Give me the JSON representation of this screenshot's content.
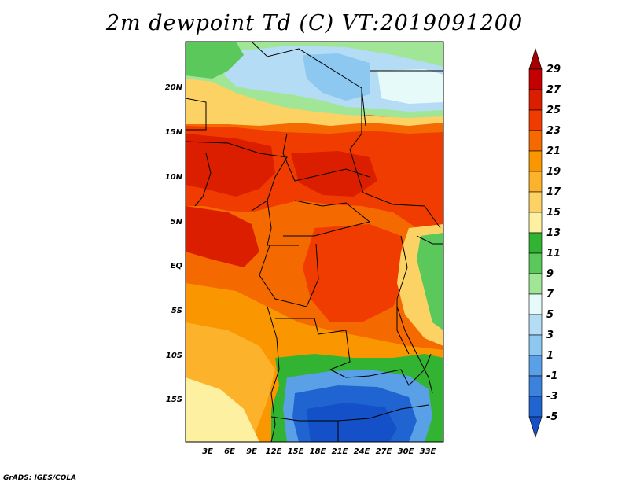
{
  "title": "2m dewpoint Td (C) VT:2019091200",
  "credit": "GrADS: IGES/COLA",
  "lat_labels": [
    "20N",
    "15N",
    "10N",
    "5N",
    "EQ",
    "5S",
    "10S",
    "15S"
  ],
  "lon_labels": [
    "3E",
    "6E",
    "9E",
    "12E",
    "15E",
    "18E",
    "21E",
    "24E",
    "27E",
    "30E",
    "33E"
  ],
  "colorbar": {
    "labels": [
      "29",
      "27",
      "25",
      "23",
      "21",
      "19",
      "17",
      "15",
      "13",
      "11",
      "9",
      "7",
      "5",
      "3",
      "1",
      "-1",
      "-3",
      "-5"
    ],
    "colors": [
      "#a50000",
      "#c40000",
      "#dc1e00",
      "#f03c00",
      "#f56a00",
      "#fa9600",
      "#fcb22a",
      "#fcd264",
      "#fdf0a0",
      "#32b432",
      "#5ac85a",
      "#a0e696",
      "#e6fafa",
      "#b4dcf5",
      "#8cc8f0",
      "#5aa0e6",
      "#3c82dc",
      "#2064d2",
      "#1450c8"
    ]
  },
  "regions": {
    "sahara_dry": "dewpoint below 9C",
    "sahel_humid": "dewpoint 21-27C",
    "southern_dry": "dewpoint -5 to 5C"
  }
}
